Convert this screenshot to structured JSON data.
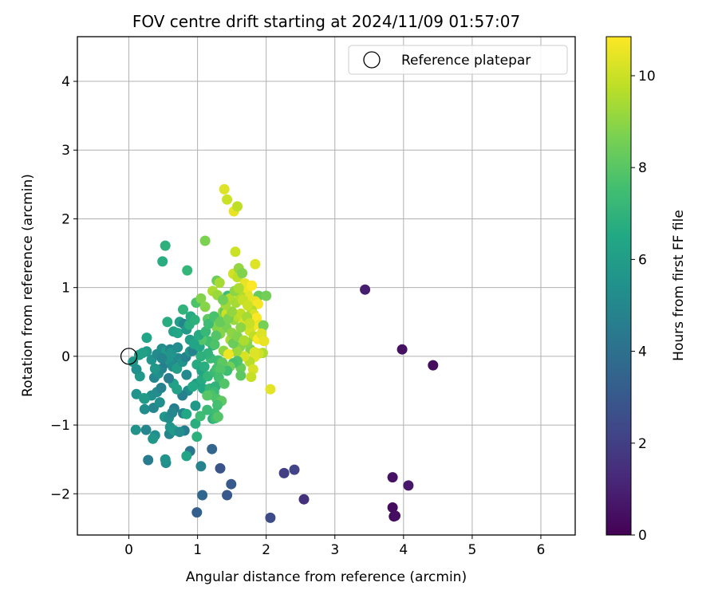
{
  "chart_data": {
    "type": "scatter",
    "title": "FOV centre drift starting at 2024/11/09 01:57:07",
    "xlabel": "Angular distance from reference (arcmin)",
    "ylabel": "Rotation from reference (arcmin)",
    "xlim": [
      -0.75,
      6.5
    ],
    "ylim": [
      -2.6,
      4.65
    ],
    "xticks": [
      0,
      1,
      2,
      3,
      4,
      5,
      6
    ],
    "yticks": [
      -2,
      -1,
      0,
      1,
      2,
      3,
      4
    ],
    "grid": true,
    "legend": {
      "position": "top-right",
      "entries": [
        "Reference platepar"
      ]
    },
    "reference_point": {
      "x": 0,
      "y": 0
    },
    "colorbar": {
      "label": "Hours from first FF file",
      "colormap": "viridis",
      "range": [
        0,
        10.85
      ],
      "ticks": [
        0,
        2,
        4,
        6,
        8,
        10
      ]
    },
    "series": [
      {
        "points": [
          [
            3.44,
            0.97,
            0.9
          ],
          [
            3.98,
            0.1,
            0.5
          ],
          [
            4.43,
            -0.13,
            0.3
          ],
          [
            3.84,
            -1.76,
            0.5
          ],
          [
            4.07,
            -1.88,
            0.7
          ],
          [
            3.84,
            -2.2,
            0.3
          ],
          [
            3.86,
            -2.33,
            0.2
          ],
          [
            3.88,
            -2.32,
            0.4
          ],
          [
            2.55,
            -2.08,
            1.5
          ],
          [
            2.26,
            -1.7,
            2.0
          ],
          [
            2.41,
            -1.65,
            2.2
          ],
          [
            2.06,
            -2.35,
            2.5
          ],
          [
            1.33,
            -1.63,
            2.8
          ],
          [
            1.43,
            -2.02,
            3.0
          ],
          [
            1.49,
            -1.86,
            3.0
          ],
          [
            1.21,
            -1.35,
            3.5
          ],
          [
            0.99,
            -2.27,
            3.3
          ],
          [
            1.07,
            -2.02,
            3.6
          ],
          [
            0.89,
            -1.38,
            4.2
          ],
          [
            1.05,
            -1.6,
            4.8
          ],
          [
            0.28,
            -1.51,
            4.5
          ],
          [
            0.54,
            -1.55,
            5.2
          ],
          [
            0.53,
            -1.5,
            5.5
          ],
          [
            0.84,
            -1.45,
            6.3
          ],
          [
            0.1,
            -1.07,
            5.5
          ],
          [
            0.25,
            -1.07,
            5.0
          ],
          [
            0.38,
            -1.15,
            5.4
          ],
          [
            0.59,
            -1.13,
            4.9
          ],
          [
            0.6,
            -1.03,
            5.6
          ],
          [
            0.66,
            -1.08,
            5.8
          ],
          [
            0.81,
            -1.08,
            4.5
          ],
          [
            0.74,
            -1.1,
            5.2
          ],
          [
            0.52,
            -0.88,
            5.7
          ],
          [
            0.66,
            -0.76,
            4.6
          ],
          [
            0.58,
            -0.9,
            5.3
          ],
          [
            0.79,
            -0.83,
            4.9
          ],
          [
            0.84,
            -0.84,
            6.5
          ],
          [
            0.97,
            -0.98,
            6.8
          ],
          [
            0.99,
            -1.17,
            6.9
          ],
          [
            1.04,
            -0.87,
            7.4
          ],
          [
            0.23,
            -0.77,
            5.3
          ],
          [
            0.36,
            -0.75,
            5.0
          ],
          [
            0.11,
            -0.55,
            5.6
          ],
          [
            0.22,
            -0.61,
            6.0
          ],
          [
            0.33,
            -0.57,
            5.4
          ],
          [
            0.41,
            -0.52,
            5.2
          ],
          [
            0.47,
            -0.46,
            4.8
          ],
          [
            0.65,
            -0.4,
            6.2
          ],
          [
            0.86,
            -0.5,
            5.3
          ],
          [
            0.78,
            -0.57,
            4.7
          ],
          [
            0.97,
            -0.72,
            5.8
          ],
          [
            0.98,
            -0.4,
            6.0
          ],
          [
            1.06,
            -0.34,
            6.6
          ],
          [
            1.08,
            -0.47,
            6.5
          ],
          [
            0.16,
            -0.29,
            5.8
          ],
          [
            0.37,
            -0.31,
            5.0
          ],
          [
            0.43,
            -0.25,
            5.4
          ],
          [
            0.48,
            -0.18,
            4.9
          ],
          [
            0.53,
            -0.1,
            4.6
          ],
          [
            0.59,
            -0.06,
            5.6
          ],
          [
            0.64,
            -0.15,
            5.3
          ],
          [
            0.7,
            -0.18,
            6.0
          ],
          [
            0.72,
            -0.03,
            5.1
          ],
          [
            0.78,
            -0.08,
            5.5
          ],
          [
            0.83,
            -0.01,
            4.8
          ],
          [
            0.89,
            0.07,
            5.7
          ],
          [
            0.93,
            0.08,
            4.8
          ],
          [
            0.99,
            -0.12,
            6.6
          ],
          [
            1.06,
            -0.21,
            6.3
          ],
          [
            1.1,
            -0.15,
            6.8
          ],
          [
            1.15,
            -0.29,
            7.1
          ],
          [
            1.18,
            -0.47,
            7.2
          ],
          [
            1.25,
            -0.23,
            7.3
          ],
          [
            1.28,
            -0.18,
            7.6
          ],
          [
            1.3,
            -0.06,
            7.5
          ],
          [
            1.19,
            -0.03,
            7.3
          ],
          [
            1.15,
            0.04,
            7.0
          ],
          [
            1.22,
            0.16,
            6.8
          ],
          [
            1.16,
            0.22,
            7.5
          ],
          [
            1.03,
            0.14,
            6.4
          ],
          [
            1.06,
            0.24,
            7.9
          ],
          [
            0.06,
            -0.08,
            5.7
          ],
          [
            0.11,
            -0.19,
            5.4
          ],
          [
            0.15,
            0.02,
            6.0
          ],
          [
            0.26,
            0.07,
            5.8
          ],
          [
            0.26,
            0.27,
            6.3
          ],
          [
            0.33,
            -0.05,
            5.6
          ],
          [
            0.41,
            0.03,
            5.1
          ],
          [
            0.48,
            0.11,
            5.3
          ],
          [
            0.55,
            0.07,
            5.9
          ],
          [
            0.6,
            0.1,
            4.9
          ],
          [
            0.62,
            0.05,
            5.6
          ],
          [
            0.65,
            0.36,
            6.2
          ],
          [
            0.71,
            0.34,
            6.4
          ],
          [
            0.74,
            0.5,
            6.1
          ],
          [
            0.8,
            0.47,
            4.9
          ],
          [
            0.84,
            0.39,
            5.8
          ],
          [
            0.88,
            0.46,
            6.8
          ],
          [
            0.9,
            0.58,
            6.6
          ],
          [
            0.96,
            0.53,
            6.9
          ],
          [
            0.98,
            0.78,
            7.8
          ],
          [
            0.79,
            0.68,
            7.0
          ],
          [
            0.56,
            0.5,
            6.7
          ],
          [
            1.05,
            0.84,
            8.8
          ],
          [
            1.11,
            0.72,
            8.9
          ],
          [
            1.22,
            0.95,
            9.5
          ],
          [
            1.29,
            0.89,
            9.2
          ],
          [
            1.28,
            1.1,
            8.4
          ],
          [
            1.32,
            1.07,
            9.4
          ],
          [
            1.15,
            0.54,
            8.1
          ],
          [
            1.21,
            0.53,
            8.5
          ],
          [
            1.28,
            0.42,
            8.8
          ],
          [
            1.35,
            0.57,
            8.7
          ],
          [
            1.37,
            0.65,
            9.0
          ],
          [
            1.38,
            0.47,
            9.2
          ],
          [
            1.42,
            0.42,
            8.6
          ],
          [
            1.4,
            0.65,
            8.1
          ],
          [
            1.42,
            0.62,
            10.0
          ],
          [
            1.44,
            0.88,
            7.4
          ],
          [
            1.47,
            0.84,
            9.6
          ],
          [
            1.52,
            1.2,
            10.1
          ],
          [
            1.55,
            1.52,
            10.0
          ],
          [
            1.58,
            1.15,
            9.8
          ],
          [
            1.6,
            1.28,
            9.1
          ],
          [
            1.65,
            1.21,
            8.8
          ],
          [
            1.69,
            1.06,
            10.5
          ],
          [
            1.72,
            0.93,
            10.6
          ],
          [
            1.74,
            0.87,
            10.4
          ],
          [
            1.79,
            1.03,
            10.8
          ],
          [
            1.84,
            1.34,
            10.3
          ],
          [
            1.89,
            0.88,
            8.3
          ],
          [
            1.84,
            0.8,
            10.5
          ],
          [
            1.88,
            0.76,
            10.7
          ],
          [
            1.79,
            0.67,
            9.6
          ],
          [
            1.82,
            0.61,
            10.2
          ],
          [
            1.86,
            0.56,
            10.8
          ],
          [
            1.91,
            0.46,
            10.5
          ],
          [
            1.96,
            0.45,
            8.6
          ],
          [
            1.81,
            0.44,
            10.7
          ],
          [
            1.76,
            0.37,
            10.1
          ],
          [
            1.82,
            0.29,
            9.8
          ],
          [
            1.88,
            0.25,
            10.8
          ],
          [
            1.93,
            0.33,
            10.3
          ],
          [
            1.97,
            0.22,
            10.5
          ],
          [
            1.95,
            0.05,
            9.5
          ],
          [
            1.89,
            0.04,
            10.1
          ],
          [
            1.83,
            -0.01,
            10.4
          ],
          [
            1.77,
            0.1,
            8.7
          ],
          [
            1.76,
            -0.08,
            9.7
          ],
          [
            1.72,
            0.2,
            8.9
          ],
          [
            1.68,
            0.0,
            10.2
          ],
          [
            1.62,
            0.14,
            8.9
          ],
          [
            1.57,
            0.07,
            9.2
          ],
          [
            1.63,
            -0.17,
            8.3
          ],
          [
            1.58,
            -0.07,
            7.8
          ],
          [
            1.52,
            -0.1,
            7.6
          ],
          [
            1.47,
            -0.15,
            8.5
          ],
          [
            1.43,
            -0.21,
            7.5
          ],
          [
            1.36,
            -0.09,
            8.1
          ],
          [
            1.33,
            -0.19,
            7.9
          ],
          [
            1.31,
            -0.31,
            7.6
          ],
          [
            1.26,
            -0.44,
            7.0
          ],
          [
            1.24,
            -0.52,
            7.3
          ],
          [
            1.2,
            -0.56,
            7.7
          ],
          [
            1.28,
            -0.62,
            7.8
          ],
          [
            1.35,
            -0.65,
            8.1
          ],
          [
            1.29,
            -0.71,
            7.6
          ],
          [
            1.25,
            -0.83,
            7.5
          ],
          [
            1.22,
            -0.91,
            6.9
          ],
          [
            1.26,
            -0.9,
            7.4
          ],
          [
            1.3,
            -0.88,
            7.9
          ],
          [
            1.14,
            -0.78,
            7.3
          ],
          [
            1.14,
            -0.57,
            8.0
          ],
          [
            1.38,
            0.08,
            9.0
          ],
          [
            1.33,
            0.33,
            8.9
          ],
          [
            1.27,
            0.3,
            7.9
          ],
          [
            1.25,
            0.17,
            7.8
          ],
          [
            1.48,
            0.24,
            9.4
          ],
          [
            1.52,
            0.19,
            8.4
          ],
          [
            1.5,
            0.34,
            9.0
          ],
          [
            1.53,
            0.53,
            9.2
          ],
          [
            1.58,
            0.58,
            9.6
          ],
          [
            1.63,
            0.62,
            9.8
          ],
          [
            1.68,
            0.5,
            10.2
          ],
          [
            1.72,
            0.57,
            9.4
          ],
          [
            1.76,
            0.48,
            9.9
          ],
          [
            1.63,
            0.42,
            9.0
          ],
          [
            1.58,
            0.29,
            8.8
          ],
          [
            1.68,
            0.23,
            9.5
          ],
          [
            1.45,
            0.03,
            10.6
          ],
          [
            1.81,
            -0.19,
            10.2
          ],
          [
            1.78,
            -0.3,
            9.9
          ],
          [
            2.06,
            -0.48,
            10.4
          ],
          [
            2.0,
            0.88,
            8.5
          ],
          [
            1.39,
            2.43,
            10.3
          ],
          [
            1.43,
            2.28,
            10.0
          ],
          [
            1.53,
            2.11,
            10.5
          ],
          [
            1.58,
            2.18,
            9.8
          ],
          [
            1.11,
            1.68,
            8.7
          ],
          [
            0.53,
            1.61,
            6.9
          ],
          [
            0.49,
            1.38,
            6.7
          ],
          [
            0.85,
            1.25,
            7.1
          ],
          [
            0.23,
            -0.62,
            5.9
          ],
          [
            0.35,
            -1.2,
            5.7
          ],
          [
            0.63,
            -0.82,
            5.0
          ],
          [
            0.45,
            -0.67,
            5.4
          ],
          [
            0.7,
            -0.48,
            6.2
          ],
          [
            0.84,
            -0.27,
            5.1
          ],
          [
            0.93,
            -0.44,
            6.5
          ],
          [
            0.58,
            -0.32,
            4.6
          ],
          [
            0.48,
            -0.03,
            4.9
          ],
          [
            0.38,
            -0.18,
            5.7
          ],
          [
            0.2,
            0.05,
            6.1
          ],
          [
            0.71,
            0.13,
            5.2
          ],
          [
            0.89,
            0.24,
            6.0
          ],
          [
            1.02,
            0.31,
            6.6
          ],
          [
            1.12,
            0.36,
            7.2
          ],
          [
            1.16,
            0.47,
            7.4
          ],
          [
            1.24,
            0.58,
            7.7
          ],
          [
            1.33,
            0.5,
            8.3
          ],
          [
            1.45,
            0.55,
            8.7
          ],
          [
            1.5,
            0.65,
            9.1
          ],
          [
            1.56,
            0.78,
            9.4
          ],
          [
            1.62,
            0.88,
            9.6
          ],
          [
            1.66,
            0.82,
            9.9
          ],
          [
            1.41,
            0.75,
            9.3
          ],
          [
            1.37,
            0.82,
            8.5
          ],
          [
            1.54,
            0.95,
            9.0
          ],
          [
            1.6,
            0.99,
            9.5
          ],
          [
            1.73,
            0.74,
            10.0
          ],
          [
            1.83,
            0.06,
            10.3
          ],
          [
            1.63,
            -0.28,
            8.1
          ],
          [
            1.39,
            -0.4,
            7.9
          ],
          [
            1.05,
            0.0,
            6.9
          ],
          [
            0.95,
            0.18,
            6.3
          ]
        ]
      }
    ]
  }
}
